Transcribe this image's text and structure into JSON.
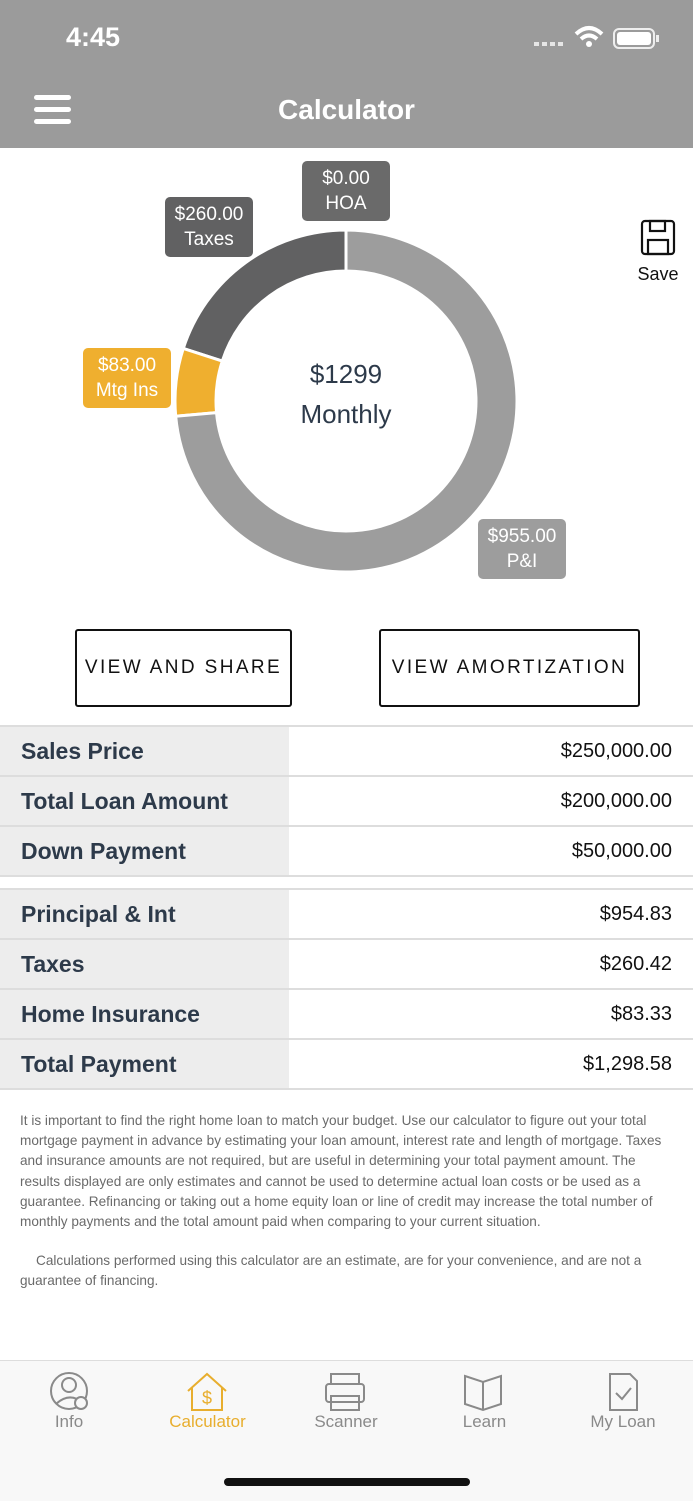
{
  "status_bar": {
    "time": "4:45"
  },
  "header": {
    "title": "Calculator"
  },
  "chart_data": {
    "type": "pie",
    "categories": [
      "P&I",
      "Mtg Ins",
      "Taxes",
      "HOA"
    ],
    "values": [
      955,
      83,
      260,
      0
    ],
    "value_labels": [
      "$955.00",
      "$83.00",
      "$260.00",
      "$0.00"
    ],
    "colors": [
      "#9d9d9d",
      "#efaf2f",
      "#616162",
      "#6a6a6a"
    ],
    "center_value": "$1299",
    "center_label": "Monthly"
  },
  "save": "Save",
  "buttons": [
    "VIEW AND SHARE",
    "VIEW AMORTIZATION"
  ],
  "table1": {
    "rows": [
      {
        "label": "Sales Price",
        "value": "$250,000.00"
      },
      {
        "label": "Total Loan Amount",
        "value": "$200,000.00"
      },
      {
        "label": "Down Payment",
        "value": "$50,000.00"
      }
    ]
  },
  "table2": {
    "rows": [
      {
        "label": "Principal & Int",
        "value": "$954.83"
      },
      {
        "label": "Taxes",
        "value": "$260.42"
      },
      {
        "label": "Home Insurance",
        "value": "$83.33"
      },
      {
        "label": "Total Payment",
        "value": "$1,298.58"
      }
    ]
  },
  "disclaimer": [
    "It is important to find the right home loan to match your budget. Use our calculator to figure out your total mortgage payment in advance by estimating your loan amount, interest rate and length of mortgage. Taxes and insurance amounts are not required, but are useful in determining your total payment amount. The results displayed are only estimates and cannot be used to determine actual loan costs or be used as a guarantee. Refinancing or taking out a home equity loan or line of credit may increase the total number of monthly payments and the total amount paid when comparing to your current situation.",
    "Calculations performed using this calculator are an estimate, are for your convenience, and are not a guarantee of financing."
  ],
  "tabs": [
    "Info",
    "Calculator",
    "Scanner",
    "Learn",
    "My Loan"
  ],
  "active_tab": 1,
  "active_color": "#e8ae2e"
}
